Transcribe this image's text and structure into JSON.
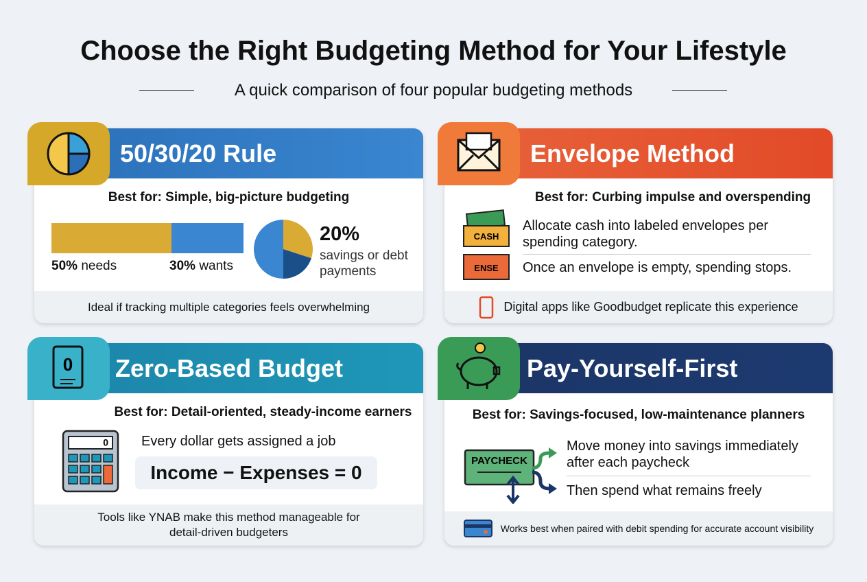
{
  "title": "Choose the Right Budgeting Method for Your Lifestyle",
  "subtitle": "A quick comparison of four popular budgeting methods",
  "cards": [
    {
      "heading": "50/30/20 Rule",
      "best_for": "Best for: Simple, big-picture budgeting",
      "split": [
        {
          "value": 50,
          "label": "50%",
          "name": "needs"
        },
        {
          "value": 30,
          "label": "30%",
          "name": "wants"
        },
        {
          "value": 20,
          "label": "20%",
          "name": "savings or debt payments"
        }
      ],
      "footer": "Ideal if tracking multiple categories feels overwhelming"
    },
    {
      "heading": "Envelope Method",
      "best_for": "Best for: Curbing impulse and overspending",
      "icon_labels": [
        "CASH",
        "ENSE"
      ],
      "points": [
        "Allocate cash into labeled envelopes per spending category.",
        "Once an envelope is empty, spending stops."
      ],
      "footer": "Digital apps like Goodbudget replicate this experience"
    },
    {
      "heading": "Zero-Based Budget",
      "best_for": "Best for: Detail-oriented, steady-income earners",
      "icon_label": "0",
      "calculator_display": "0",
      "point": "Every dollar gets assigned a job",
      "formula": "Income − Expenses = 0",
      "footer": "Tools like YNAB make this method manageable for detail-driven budgeters"
    },
    {
      "heading": "Pay-Yourself-First",
      "best_for": "Best for: Savings-focused, low-maintenance planners",
      "icon_label": "PAYCHECK",
      "points": [
        "Move money into savings immediately after each paycheck",
        "Then spend what remains freely"
      ],
      "footer": "Works best when paired with debit spending for accurate account visibility"
    }
  ]
}
